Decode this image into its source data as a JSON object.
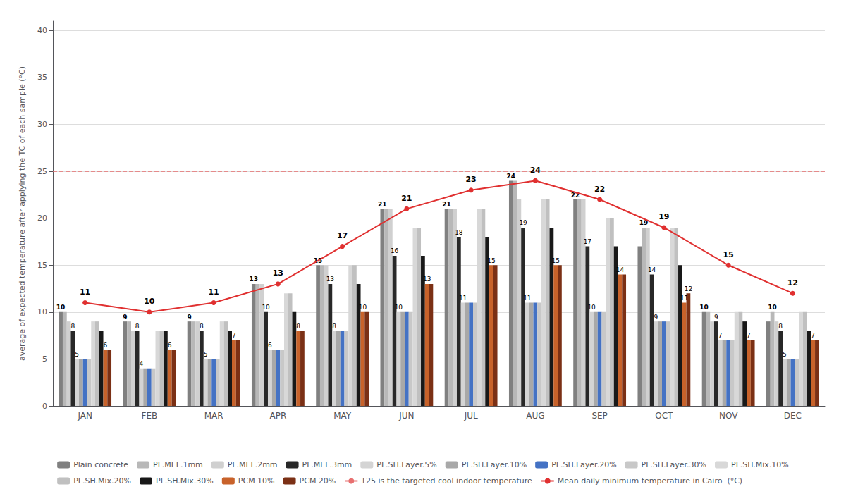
{
  "chart_data": {
    "type": "bar",
    "categories": [
      "JAN",
      "FEB",
      "MAR",
      "APR",
      "MAY",
      "JUN",
      "JUL",
      "AUG",
      "SEP",
      "OCT",
      "NOV",
      "DEC"
    ],
    "ylabel": "average of expected temperature after applying the TC of each sample (°C)",
    "ylim": [
      0,
      41
    ],
    "yticks": [
      0,
      5,
      10,
      15,
      20,
      25,
      30,
      35,
      40
    ],
    "grid": true,
    "legend": "bottom",
    "series": [
      {
        "name": "Plain concrete",
        "color": "#808080",
        "values": [
          10,
          9,
          9,
          13,
          15,
          21,
          21,
          24,
          22,
          17,
          10,
          9
        ],
        "value_labels": [
          "10",
          "9",
          "9",
          "13",
          "15",
          "21",
          "21",
          "24",
          "22",
          null,
          "10",
          null
        ]
      },
      {
        "name": "PL.MEL.1mm",
        "color": "#b8b8b8",
        "values": [
          10,
          9,
          9,
          13,
          15,
          21,
          21,
          24,
          22,
          19,
          10,
          10
        ],
        "value_labels": [
          null,
          null,
          null,
          null,
          null,
          null,
          null,
          null,
          null,
          "19",
          null,
          "10"
        ]
      },
      {
        "name": "PL.MEL.2mm",
        "color": "#d0d0d0",
        "values": [
          9,
          8,
          9,
          13,
          15,
          21,
          21,
          22,
          22,
          19,
          9,
          9
        ]
      },
      {
        "name": "PL.MEL.3mm",
        "color": "#282828",
        "values": [
          8,
          8,
          8,
          10,
          13,
          16,
          18,
          19,
          17,
          14,
          9,
          8
        ],
        "value_labels": [
          "8",
          "8",
          "8",
          "10",
          "13",
          "16",
          "18",
          "19",
          "17",
          "14",
          "9",
          "8"
        ]
      },
      {
        "name": "PL.SH.Layer.5%",
        "color": "#d4d4d4",
        "values": [
          5,
          4,
          5,
          6,
          8,
          10,
          11,
          11,
          10,
          9,
          7,
          5
        ],
        "value_labels": [
          "5",
          "4",
          "5",
          "6",
          "8",
          "10",
          "11",
          "11",
          "10",
          "9",
          "7",
          "5"
        ]
      },
      {
        "name": "PL.SH.Layer.10%",
        "color": "#a8a8a8",
        "values": [
          5,
          4,
          5,
          6,
          8,
          10,
          11,
          11,
          10,
          9,
          7,
          5
        ]
      },
      {
        "name": "PL.SH.Layer.20%",
        "color": "#4472c4",
        "values": [
          5,
          4,
          5,
          6,
          8,
          10,
          11,
          11,
          10,
          9,
          7,
          5
        ]
      },
      {
        "name": "PL.SH.Layer.30%",
        "color": "#c8c8c8",
        "values": [
          5,
          4,
          5,
          6,
          8,
          10,
          11,
          11,
          10,
          9,
          7,
          5
        ]
      },
      {
        "name": "PL.SH.Mix.10%",
        "color": "#d8d8d8",
        "values": [
          9,
          8,
          9,
          12,
          15,
          19,
          21,
          22,
          20,
          19,
          10,
          10
        ]
      },
      {
        "name": "PL.SH.Mix.20%",
        "color": "#c0c0c0",
        "values": [
          9,
          8,
          9,
          12,
          15,
          19,
          21,
          22,
          20,
          19,
          10,
          10
        ]
      },
      {
        "name": "PL.SH.Mix.30%",
        "color": "#181818",
        "values": [
          8,
          8,
          8,
          10,
          13,
          16,
          18,
          19,
          17,
          15,
          9,
          8
        ]
      },
      {
        "name": "PCM 10%",
        "color": "#c8622a",
        "values": [
          6,
          6,
          7,
          8,
          10,
          13,
          15,
          15,
          14,
          11,
          7,
          7
        ],
        "value_labels": [
          "6",
          "6",
          "7",
          "8",
          "10",
          "13",
          "15",
          "15",
          "14",
          "11",
          "7",
          "7"
        ]
      },
      {
        "name": "PCM 20%",
        "color": "#7b3015",
        "values": [
          6,
          6,
          7,
          8,
          10,
          13,
          15,
          15,
          14,
          12,
          7,
          7
        ],
        "value_labels": [
          null,
          null,
          null,
          null,
          null,
          null,
          null,
          null,
          null,
          "12",
          null,
          null
        ]
      },
      {
        "name": "T25 is the targeted cool indoor temperature",
        "type": "hline",
        "color": "#e87070",
        "line_style": "dashed",
        "value": 25
      },
      {
        "name": "Mean daily minimum temperature in Cairo  (°C)",
        "type": "line",
        "color": "#e03030",
        "marker": "circle",
        "line_style": "solid",
        "data_labels": true,
        "values": [
          11,
          10,
          11,
          13,
          17,
          21,
          23,
          24,
          22,
          19,
          15,
          12
        ]
      }
    ]
  }
}
